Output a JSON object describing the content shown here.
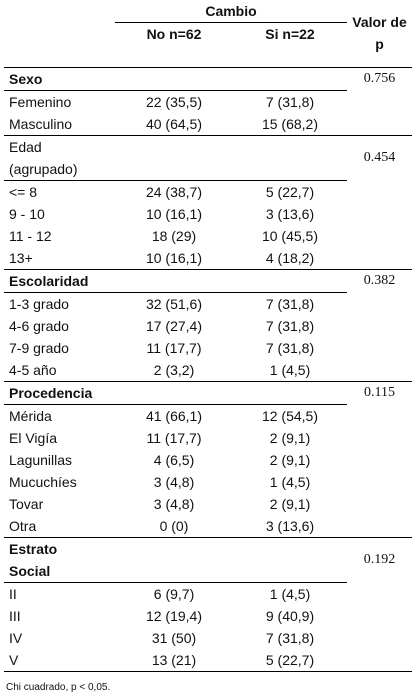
{
  "header": {
    "group": "Cambio",
    "col_no": "No n=62",
    "col_si": "Si n=22",
    "col_p_line1": "Valor de",
    "col_p_line2": "p"
  },
  "sections": [
    {
      "title": "Sexo",
      "title_line2": "",
      "p": "0.756",
      "rows": [
        {
          "label": "Femenino",
          "no": "22 (35,5)",
          "si": "7 (31,8)"
        },
        {
          "label": "Masculino",
          "no": "40 (64,5)",
          "si": "15 (68,2)"
        }
      ]
    },
    {
      "title": "Edad",
      "title_line2": "(agrupado)",
      "p": "0.454",
      "rows": [
        {
          "label": "<= 8",
          "no": "24 (38,7)",
          "si": "5 (22,7)"
        },
        {
          "label": "9 - 10",
          "no": "10 (16,1)",
          "si": "3 (13,6)"
        },
        {
          "label": "11 - 12",
          "no": "18 (29)",
          "si": "10 (45,5)"
        },
        {
          "label": "13+",
          "no": "10 (16,1)",
          "si": "4 (18,2)"
        }
      ]
    },
    {
      "title": "Escolaridad",
      "title_line2": "",
      "p": "0.382",
      "rows": [
        {
          "label": "1-3 grado",
          "no": "32 (51,6)",
          "si": "7 (31,8)"
        },
        {
          "label": "4-6 grado",
          "no": "17 (27,4)",
          "si": "7 (31,8)"
        },
        {
          "label": "7-9 grado",
          "no": "11 (17,7)",
          "si": "7 (31,8)"
        },
        {
          "label": "4-5 año",
          "no": "2 (3,2)",
          "si": "1 (4,5)"
        }
      ]
    },
    {
      "title": "Procedencia",
      "title_line2": "",
      "p": "0.115",
      "rows": [
        {
          "label": "Mérida",
          "no": "41 (66,1)",
          "si": "12 (54,5)"
        },
        {
          "label": "El Vigía",
          "no": "11 (17,7)",
          "si": "2 (9,1)"
        },
        {
          "label": "Lagunillas",
          "no": "4 (6,5)",
          "si": "2 (9,1)"
        },
        {
          "label": "Mucuchíes",
          "no": "3 (4,8)",
          "si": "1 (4,5)"
        },
        {
          "label": "Tovar",
          "no": "3 (4,8)",
          "si": "2 (9,1)"
        },
        {
          "label": "Otra",
          "no": "0 (0)",
          "si": "3 (13,6)"
        }
      ]
    },
    {
      "title": "Estrato",
      "title_line2": "Social",
      "p": "0.192",
      "rows": [
        {
          "label": "II",
          "no": "6 (9,7)",
          "si": "1 (4,5)"
        },
        {
          "label": "III",
          "no": "12 (19,4)",
          "si": "9 (40,9)"
        },
        {
          "label": "IV",
          "no": "31 (50)",
          "si": "7 (31,8)"
        },
        {
          "label": "V",
          "no": "13 (21)",
          "si": "5 (22,7)"
        }
      ]
    }
  ],
  "footnote": "Chi cuadrado, p < 0,05."
}
